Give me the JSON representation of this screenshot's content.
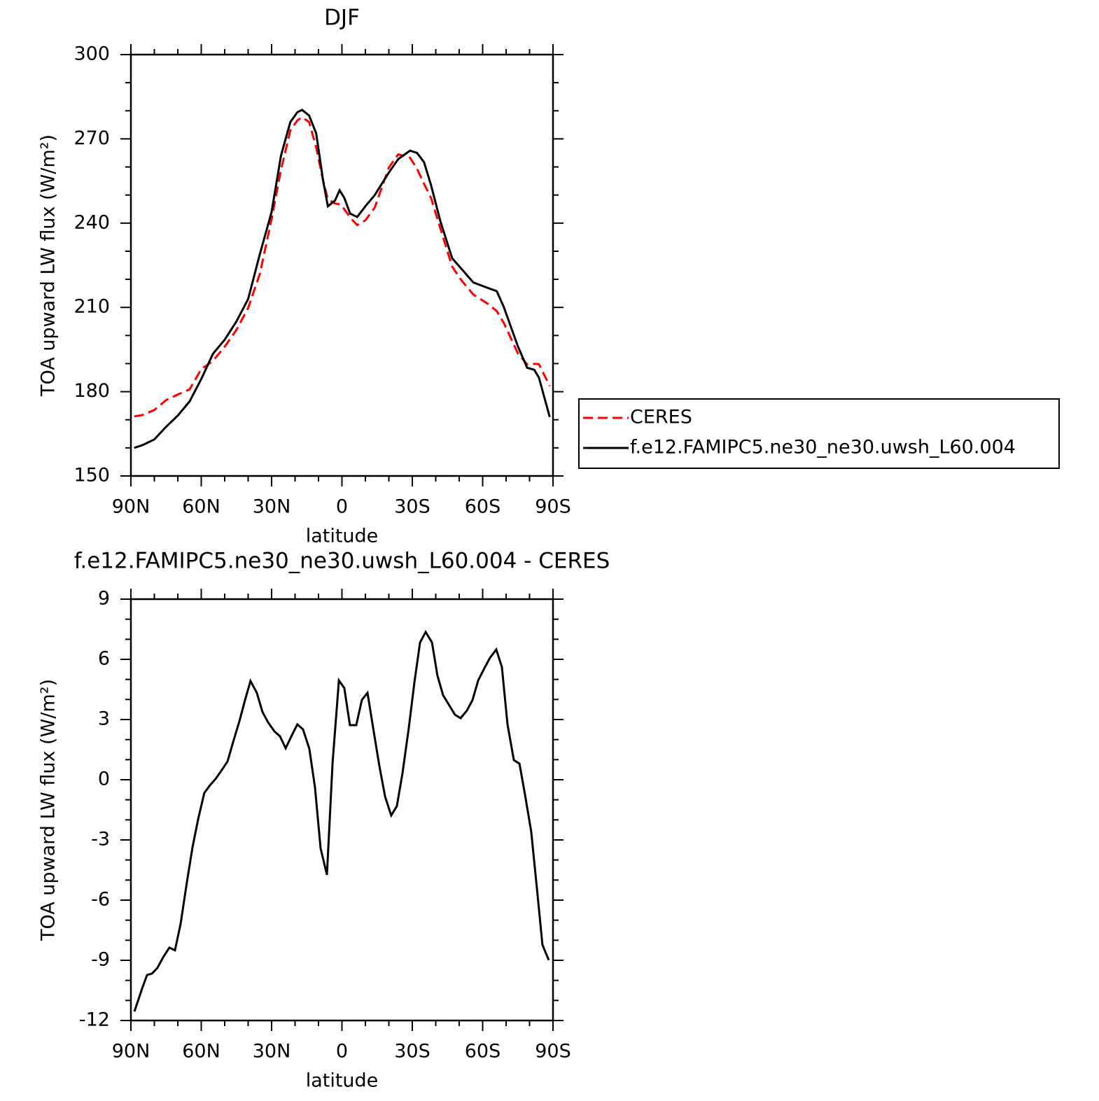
{
  "chart_data": [
    {
      "type": "line",
      "title": "DJF",
      "xlabel": "latitude",
      "ylabel": "TOA upward LW flux (W/m²)",
      "x": [
        88.6,
        85,
        80,
        75,
        70,
        65,
        60,
        55,
        50,
        45,
        40,
        35,
        30,
        26,
        22,
        19,
        17,
        14,
        11,
        8,
        6,
        3,
        1,
        -1,
        -3.5,
        -6.5,
        -10,
        -14,
        -20,
        -24,
        -29,
        -32,
        -35,
        -38,
        -42,
        -47,
        -51,
        -56,
        -62,
        -66,
        -69,
        -75,
        -79,
        -82,
        -84,
        -88.6
      ],
      "series": [
        {
          "name": "CERES",
          "color": "#ff0000",
          "dash": true,
          "values": [
            171.2,
            171.7,
            173.5,
            177,
            179,
            180.8,
            188,
            191,
            196,
            202,
            209.8,
            222,
            241.5,
            259,
            273,
            276.6,
            277.7,
            276,
            267,
            255,
            248.5,
            247,
            246.7,
            245,
            242,
            239.3,
            241,
            245.6,
            259.8,
            264.5,
            263.3,
            259.4,
            254,
            249,
            238,
            224.5,
            219.6,
            214.6,
            211.4,
            208.7,
            204.5,
            193.7,
            189.7,
            189.9,
            189.8,
            182
          ]
        },
        {
          "name": "f.e12.FAMIPC5.ne30_ne30.uwsh_L60.004",
          "color": "#000000",
          "dash": false,
          "values": [
            160,
            161,
            163,
            167.5,
            171.5,
            176.5,
            184.5,
            193.5,
            198.5,
            205,
            213,
            229,
            244,
            264,
            276,
            279.5,
            280.3,
            278.3,
            272,
            255,
            246,
            248,
            251.7,
            249,
            243.4,
            242.2,
            246,
            250,
            258,
            262.8,
            265.8,
            265,
            261.7,
            253.5,
            240.6,
            227.5,
            223.7,
            218.9,
            217,
            215.8,
            210.2,
            196.2,
            188.5,
            187.8,
            185,
            171
          ]
        }
      ],
      "xlim": [
        90,
        -90
      ],
      "xticks": [
        {
          "value": 90,
          "label": "90N"
        },
        {
          "value": 60,
          "label": "60N"
        },
        {
          "value": 30,
          "label": "30N"
        },
        0,
        {
          "value": -30,
          "label": "30S"
        },
        {
          "value": -60,
          "label": "60S"
        },
        {
          "value": -90,
          "label": "90S"
        }
      ],
      "xminorticks": [
        80,
        70,
        50,
        40,
        20,
        10,
        -10,
        -20,
        -40,
        -50,
        -70,
        -80
      ],
      "ylim": [
        150,
        300
      ],
      "yticks": [
        150,
        180,
        210,
        240,
        270,
        300
      ],
      "yminorticks": [
        160,
        170,
        190,
        200,
        220,
        230,
        250,
        260,
        280,
        290
      ],
      "legend": "right"
    },
    {
      "type": "line",
      "title": "f.e12.FAMIPC5.ne30_ne30.uwsh_L60.004 - CERES",
      "xlabel": "latitude",
      "ylabel": "TOA upward LW flux (W/m²)",
      "x": [
        88.5,
        85.2,
        83.1,
        81,
        78.7,
        76.3,
        73.6,
        71.2,
        68.8,
        66.1,
        63.7,
        61.3,
        58.7,
        56.3,
        53.9,
        51.2,
        48.8,
        46.4,
        43.7,
        41.3,
        39,
        36.3,
        33.9,
        31.5,
        28.8,
        26.4,
        24,
        21.3,
        19,
        16.6,
        13.9,
        11.5,
        9.1,
        6.4,
        4,
        1.3,
        -1,
        -3.4,
        -6.1,
        -8.5,
        -10.9,
        -13.3,
        -16,
        -18.4,
        -21,
        -23.4,
        -25.8,
        -28.5,
        -30.9,
        -33.3,
        -35.7,
        -38.4,
        -40.7,
        -43.1,
        -45.8,
        -48.2,
        -50.6,
        -53.3,
        -55.7,
        -58.1,
        -60.7,
        -63.1,
        -65.8,
        -68.2,
        -70.6,
        -73.3,
        -75.7,
        -78.1,
        -80.7,
        -83.1,
        -85.5,
        -88.2
      ],
      "series": [
        {
          "color": "#000000",
          "values": [
            -11.55,
            -10.4,
            -9.73,
            -9.66,
            -9.38,
            -8.86,
            -8.37,
            -8.5,
            -7.18,
            -5.09,
            -3.35,
            -1.95,
            -0.66,
            -0.28,
            0.04,
            0.49,
            0.91,
            1.88,
            2.93,
            3.98,
            4.92,
            4.33,
            3.38,
            2.86,
            2.41,
            2.16,
            1.57,
            2.23,
            2.76,
            2.51,
            1.54,
            -0.38,
            -3.42,
            -4.74,
            0.84,
            4.95,
            4.57,
            2.72,
            2.72,
            3.98,
            4.33,
            2.58,
            0.66,
            -0.84,
            -1.78,
            -1.32,
            0.31,
            2.58,
            4.85,
            6.84,
            7.36,
            6.84,
            5.2,
            4.22,
            3.7,
            3.24,
            3.07,
            3.45,
            3.98,
            4.95,
            5.55,
            6.07,
            6.49,
            5.62,
            2.76,
            0.98,
            0.8,
            -0.77,
            -2.58,
            -5.37,
            -8.23,
            -8.99
          ]
        }
      ],
      "xlim": [
        90,
        -90
      ],
      "xticks": [
        {
          "value": 90,
          "label": "90N"
        },
        {
          "value": 60,
          "label": "60N"
        },
        {
          "value": 30,
          "label": "30N"
        },
        0,
        {
          "value": -30,
          "label": "30S"
        },
        {
          "value": -60,
          "label": "60S"
        },
        {
          "value": -90,
          "label": "90S"
        }
      ],
      "xminorticks": [
        80,
        70,
        50,
        40,
        20,
        10,
        -10,
        -20,
        -40,
        -50,
        -70,
        -80
      ],
      "ylim": [
        -12,
        9
      ],
      "yticks": [
        -12,
        -9,
        -6,
        -3,
        0,
        3,
        6,
        9
      ],
      "yminorticks": [
        -11,
        -10,
        -8,
        -7,
        -5,
        -4,
        -2,
        -1,
        1,
        2,
        4,
        5,
        7,
        8
      ]
    }
  ]
}
